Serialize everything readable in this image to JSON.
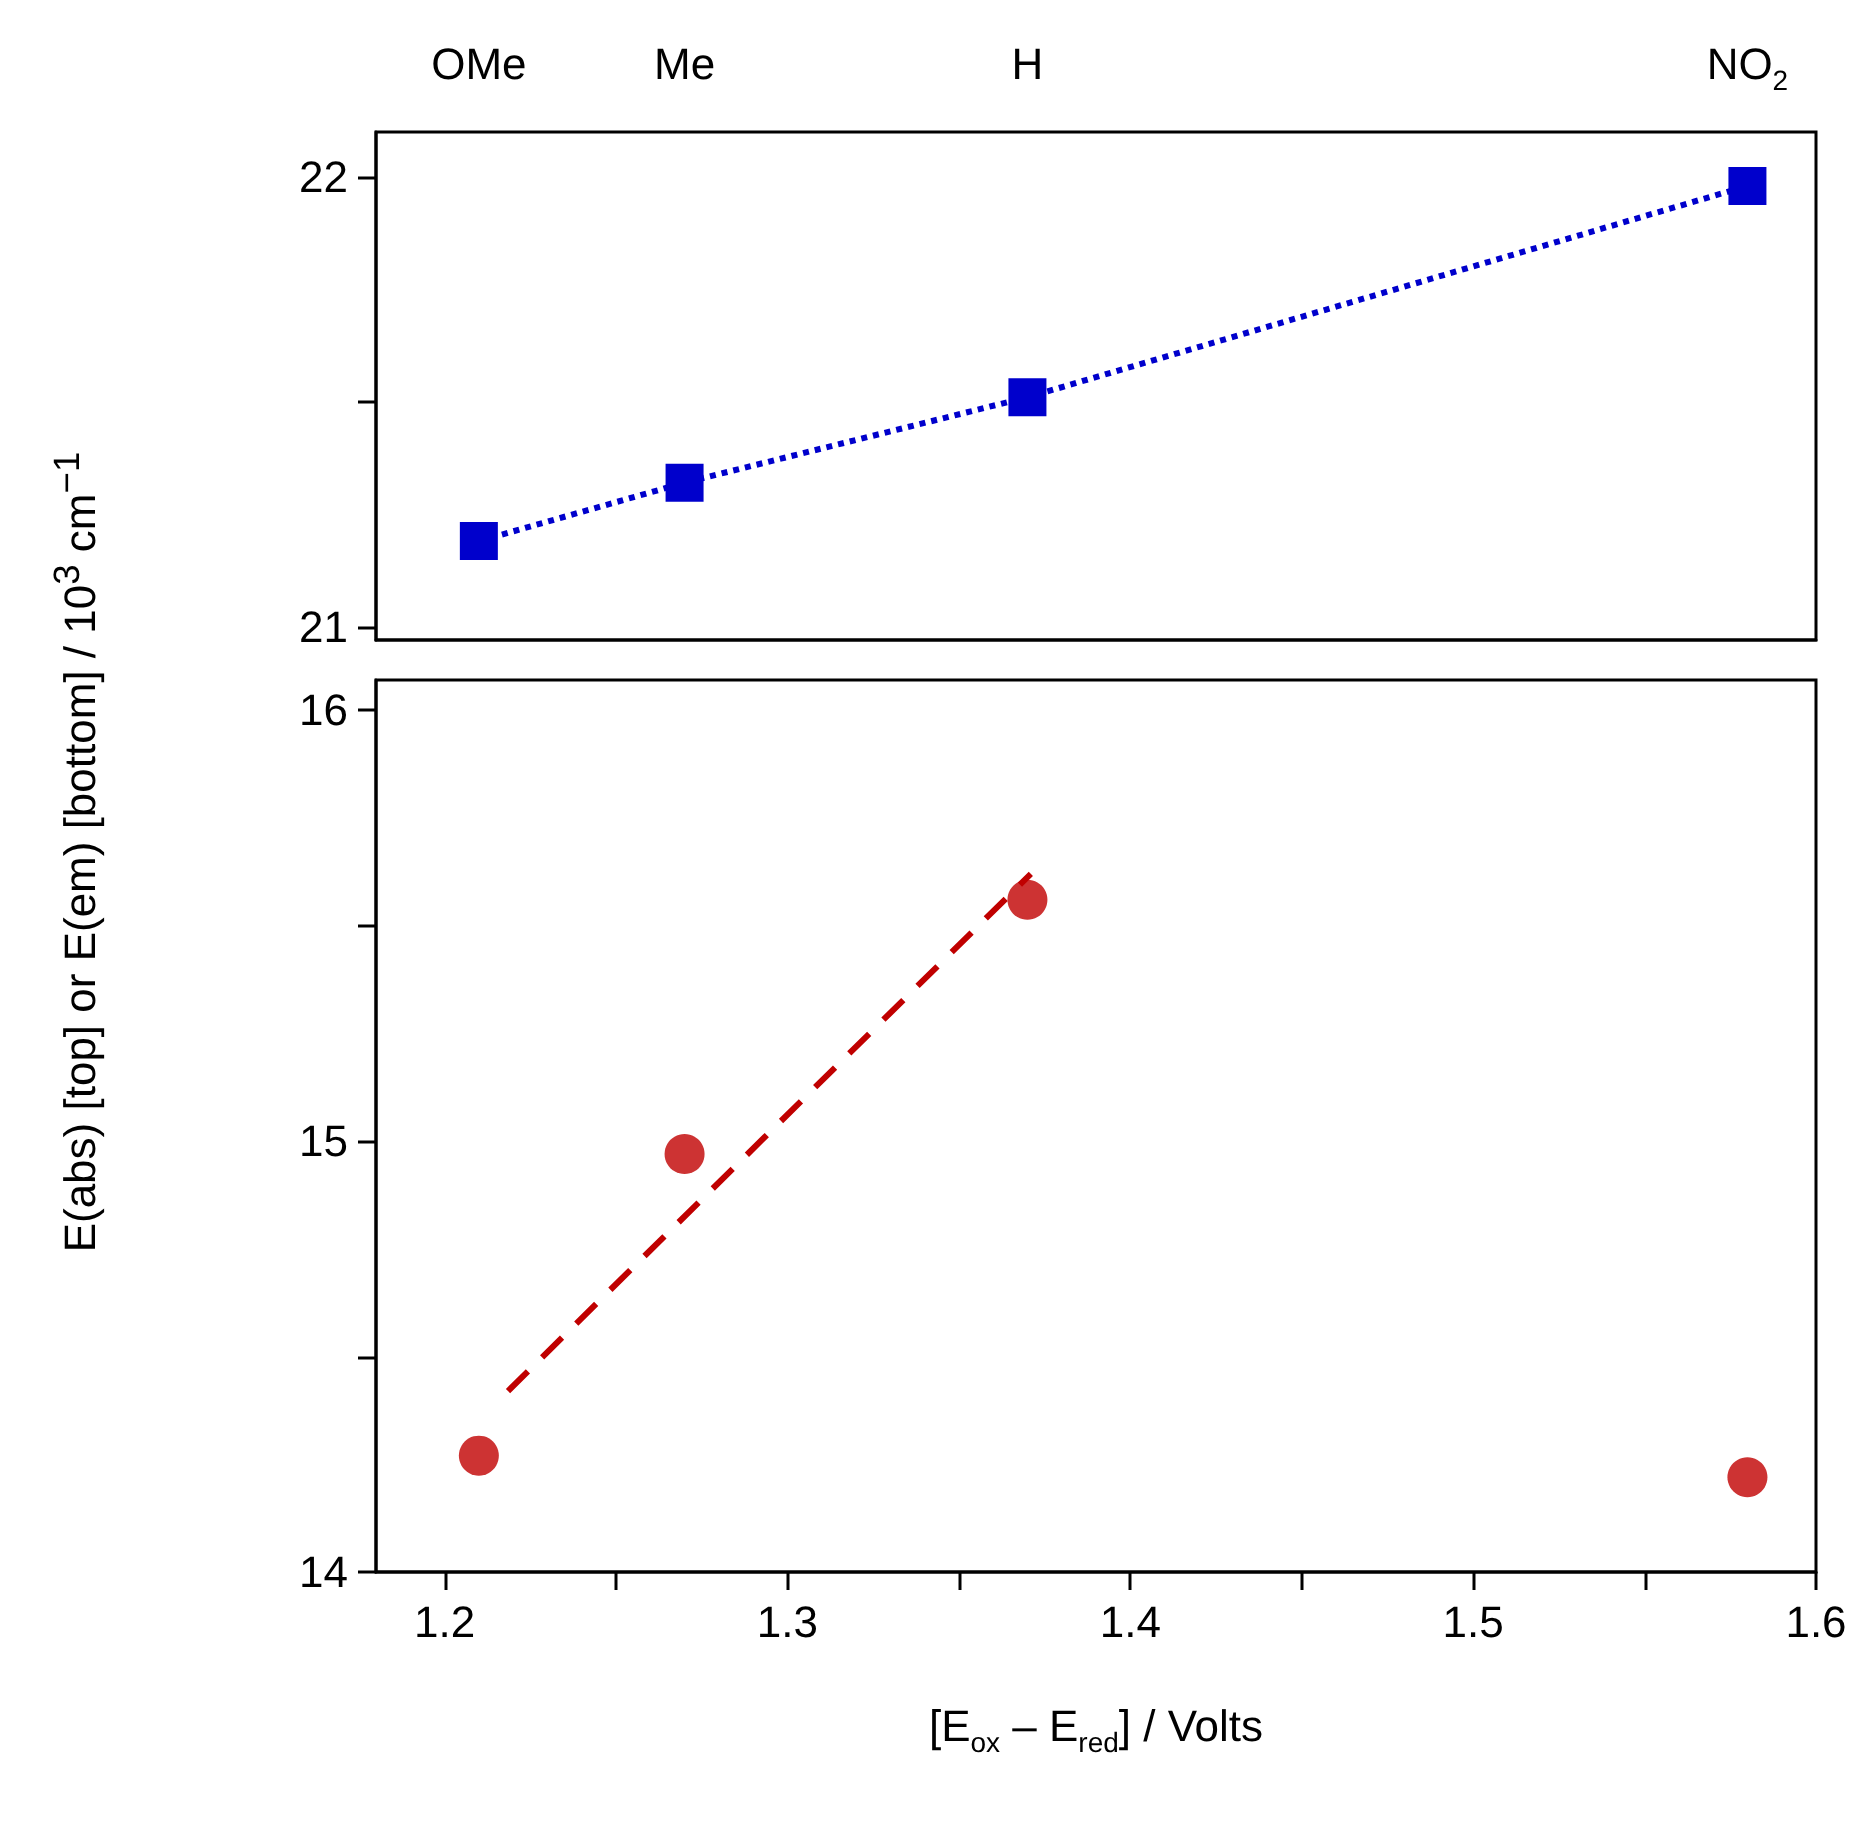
{
  "chart_data": [
    {
      "type": "line",
      "ylabel": "E(abs) [top] or E(em) [bottom] / 10$^{3}$ cm$^{−1}$",
      "x": [
        1.21,
        1.27,
        1.37,
        1.58
      ],
      "series": [
        {
          "color": "#0000cc",
          "values": [
            21.19,
            21.32,
            21.51,
            21.98
          ],
          "marker": "square",
          "line_style": "dotted"
        }
      ],
      "xlim": [
        1.18,
        1.6
      ],
      "ylim": [
        20.97,
        22.1
      ],
      "yticks": [
        21,
        {
          "value": 21.5,
          "label": null
        },
        22
      ],
      "annotations": [
        "OMe",
        "Me",
        "H",
        "NO$_{2}$"
      ],
      "tick_labels": "y"
    },
    {
      "type": "scatter",
      "xlabel": "[E$_{ox}$ – E$_{red}$] / Volts",
      "series": [
        {
          "type": "scatter",
          "color": "#c00000",
          "x": [
            1.21,
            1.27,
            1.37,
            1.58
          ],
          "values": [
            14.27,
            14.97,
            15.56,
            14.22
          ],
          "marker": "circle"
        },
        {
          "type": "line",
          "color": "#c00000",
          "x": [
            1.2185,
            1.371
          ],
          "values": [
            14.42,
            15.62
          ],
          "marker": "none",
          "line_style": "dashed"
        }
      ],
      "xlim": [
        1.18,
        1.6
      ],
      "xticks": [
        1.2,
        {
          "value": 1.25,
          "label": null
        },
        1.3,
        {
          "value": 1.35,
          "label": null
        },
        1.4,
        {
          "value": 1.45,
          "label": null
        },
        1.5,
        {
          "value": 1.55,
          "label": null
        },
        1.6
      ],
      "ylim": [
        14,
        16.07
      ],
      "yticks": [
        14,
        {
          "value": 14.5,
          "label": null
        },
        15,
        {
          "value": 15.5,
          "label": null
        },
        16
      ]
    }
  ]
}
